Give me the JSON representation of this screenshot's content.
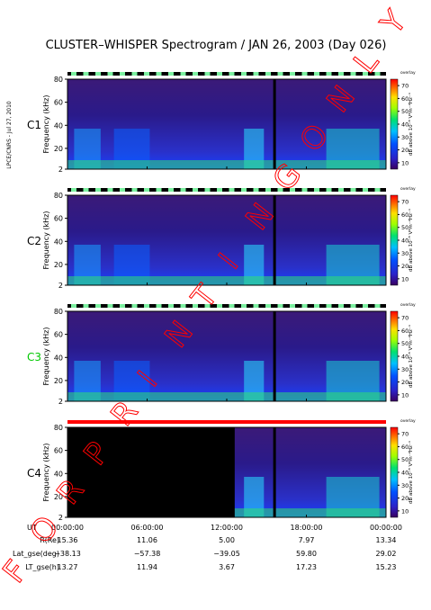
{
  "title": "CLUSTER–WHISPER Spectrogram / JAN 26, 2003 (Day 026)",
  "side_credit": "LPCE/CNRS - Jul 27, 2010",
  "colors": {
    "c3_label": "#00c800",
    "c4_status_bar": "#ff0000",
    "stamp": "#ff0000"
  },
  "stamp": {
    "letters": [
      "F",
      "O",
      "R",
      "P",
      "R",
      "I",
      "N",
      "T",
      "I",
      "N",
      "G",
      "O",
      "N",
      "L",
      "Y"
    ]
  },
  "chart_data": {
    "type": "heatmap",
    "x": {
      "label": "UT",
      "ticks": [
        "00:00:00",
        "06:00:00",
        "12:00:00",
        "18:00:00",
        "00:00:00"
      ]
    },
    "y": {
      "label": "Frequency (kHz)",
      "range": [
        2,
        80
      ],
      "ticks": [
        2,
        20,
        40,
        60,
        80
      ]
    },
    "colorbar": {
      "label": "dB above 10⁻⁸ V²m⁻²Hz⁻¹",
      "ticks": [
        10,
        20,
        30,
        40,
        50,
        60,
        70
      ],
      "range": [
        5,
        75
      ],
      "top_label": "overlay"
    },
    "panels": [
      {
        "label": "C1",
        "data_gap_hours": []
      },
      {
        "label": "C2",
        "data_gap_hours": []
      },
      {
        "label": "C3",
        "data_gap_hours": []
      },
      {
        "label": "C4",
        "data_gap_hours": [
          [
            0,
            12.6
          ]
        ]
      }
    ],
    "orbit_table": {
      "rows": [
        {
          "label": "R(Re)",
          "values": [
            "15.36",
            "11.06",
            "5.00",
            "7.97",
            "13.34"
          ]
        },
        {
          "label": "Lat_gse(deg)",
          "values": [
            "−38.13",
            "−57.38",
            "−39.05",
            "59.80",
            "29.02"
          ]
        },
        {
          "label": "LT_gse(h)",
          "values": [
            "13.27",
            "11.94",
            "3.67",
            "17.23",
            "15.23"
          ]
        }
      ]
    }
  }
}
